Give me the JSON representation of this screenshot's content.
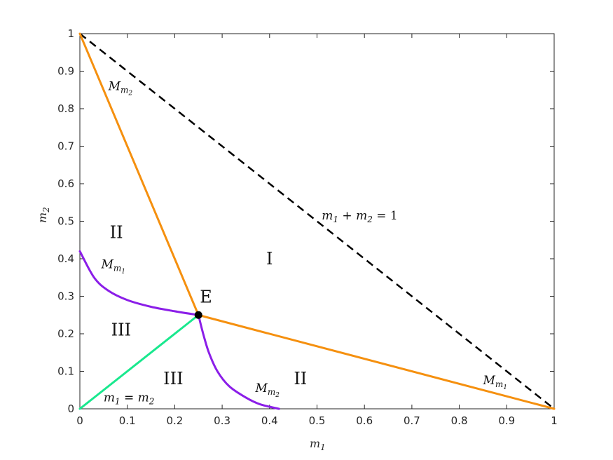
{
  "chart_data": {
    "type": "line",
    "xlabel": "m1",
    "ylabel": "m2",
    "xlim": [
      0,
      1
    ],
    "ylim": [
      0,
      1
    ],
    "xticks": [
      "0",
      "0.1",
      "0.2",
      "0.3",
      "0.4",
      "0.5",
      "0.6",
      "0.7",
      "0.8",
      "0.9",
      "1"
    ],
    "yticks": [
      "0",
      "0.1",
      "0.2",
      "0.3",
      "0.4",
      "0.5",
      "0.6",
      "0.7",
      "0.8",
      "0.9",
      "1"
    ],
    "grid": false,
    "series": [
      {
        "kind": "orange-upper",
        "color": "#f5900f",
        "points": [
          [
            0,
            1
          ],
          [
            0.25,
            0.25
          ]
        ]
      },
      {
        "kind": "orange-lower",
        "color": "#f5900f",
        "points": [
          [
            0.25,
            0.25
          ],
          [
            1,
            0
          ]
        ]
      },
      {
        "kind": "dashed",
        "color": "#000000",
        "points": [
          [
            0,
            1
          ],
          [
            1,
            0
          ]
        ]
      },
      {
        "kind": "green",
        "color": "#19e88e",
        "points": [
          [
            0,
            0
          ],
          [
            0.25,
            0.25
          ]
        ]
      },
      {
        "kind": "purple-left",
        "color": "#8b1ee8",
        "points": [
          [
            0,
            0.42
          ],
          [
            0.03,
            0.35
          ],
          [
            0.06,
            0.315
          ],
          [
            0.1,
            0.29
          ],
          [
            0.15,
            0.272
          ],
          [
            0.2,
            0.26
          ],
          [
            0.25,
            0.25
          ]
        ]
      },
      {
        "kind": "purple-right",
        "color": "#8b1ee8",
        "points": [
          [
            0.25,
            0.25
          ],
          [
            0.26,
            0.2
          ],
          [
            0.272,
            0.15
          ],
          [
            0.29,
            0.1
          ],
          [
            0.315,
            0.06
          ],
          [
            0.35,
            0.03
          ],
          [
            0.38,
            0.012
          ],
          [
            0.42,
            0
          ]
        ]
      }
    ],
    "point": {
      "label": "E",
      "x": 0.25,
      "y": 0.25,
      "color": "#000000"
    },
    "region_labels": [
      {
        "text": "I",
        "x": 0.4,
        "y": 0.4
      },
      {
        "text": "II",
        "x": 0.077,
        "y": 0.47
      },
      {
        "text": "II",
        "x": 0.465,
        "y": 0.08
      },
      {
        "text": "III",
        "x": 0.087,
        "y": 0.21
      },
      {
        "text": "III",
        "x": 0.197,
        "y": 0.08
      }
    ],
    "annotations": {
      "mm2_top": {
        "x": 0.06,
        "y": 0.85
      },
      "mm1_left": {
        "x": 0.045,
        "y": 0.375
      },
      "mm2_bottom": {
        "x": 0.37,
        "y": 0.045
      },
      "mm1_right": {
        "x": 0.85,
        "y": 0.065
      },
      "sum_eq": {
        "x": 0.51,
        "y": 0.505
      },
      "eq_line": {
        "x": 0.05,
        "y": 0.02
      }
    }
  }
}
